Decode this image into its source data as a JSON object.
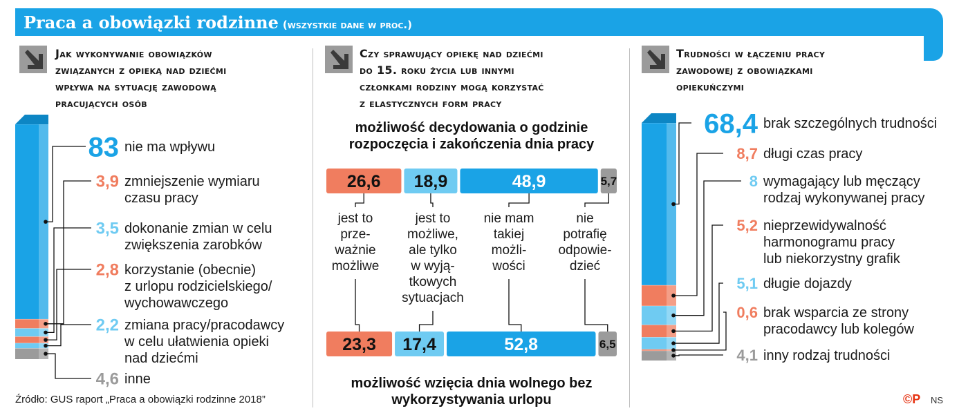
{
  "header": {
    "title": "Praca a obowiązki rodzinne",
    "subtitle": "(wszystkie dane w proc.)"
  },
  "panel1": {
    "question": [
      "Jak wykonywanie obowiązków",
      "związanych z opieką nad dziećmi",
      "wpływa na sytuację zawodową",
      "pracujących osób"
    ]
  },
  "panel2": {
    "question": [
      "Czy sprawujący opiekę nad dziećmi",
      "do 15. roku życia lub innymi",
      "członkami rodziny mogą korzystać",
      "z elastycznych form pracy"
    ],
    "top_title": [
      "możliwość decydowania o godzinie",
      "rozpoczęcia i zakończenia dnia pracy"
    ],
    "bottom_title": [
      "możliwość wzięcia dnia wolnego bez",
      "wykorzystywania urlopu"
    ]
  },
  "panel3": {
    "question": [
      "Trudności w łączeniu pracy",
      "zawodowej z obowiązkami",
      "opiekuńczymi"
    ]
  },
  "colors": {
    "blue": "#1aa3e6",
    "orange": "#f07d5f",
    "light_blue": "#6fcbf2",
    "gray": "#9b9b9b"
  },
  "footer": {
    "source": "Źródło: GUS raport „Praca a obowiązki rodzinne 2018”",
    "logo": "©P",
    "initials": "NS"
  },
  "chart_data": [
    {
      "type": "bar",
      "stacked": true,
      "categories": [
        "nie ma wpływu",
        "zmniejszenie wymiaru czasu pracy",
        "dokonanie zmian w celu zwiększenia zarobków",
        "korzystanie (obecnie) z urlopu rodzicielskiego/ wychowawczego",
        "zmiana pracy/pracodawcy w celu ułatwienia opieki nad dziećmi",
        "inne"
      ],
      "label_lines": [
        [
          "nie ma wpływu"
        ],
        [
          "zmniejszenie wymiaru",
          "czasu pracy"
        ],
        [
          "dokonanie zmian w celu",
          "zwiększenia zarobków"
        ],
        [
          "korzystanie (obecnie)",
          "z urlopu rodzicielskiego/",
          "wychowawczego"
        ],
        [
          "zmiana pracy/pracodawcy",
          "w celu ułatwienia opieki",
          "nad dziećmi"
        ],
        [
          "inne"
        ]
      ],
      "values": [
        83,
        3.9,
        3.5,
        2.8,
        2.2,
        4.6
      ],
      "labels": [
        "83",
        "3,9",
        "3,5",
        "2,8",
        "2,2",
        "4,6"
      ],
      "colors": [
        "blue",
        "orange",
        "light_blue",
        "orange",
        "light_blue",
        "gray"
      ]
    },
    {
      "type": "bar",
      "stacked": true,
      "orientation": "horizontal",
      "categories": [
        "jest to przeważnie możliwe",
        "jest to możliwe, ale tylko w wyjątkowych sytuacjach",
        "nie mam takiej możliwości",
        "nie potrafię odpowiedzieć"
      ],
      "category_lines": [
        [
          "jest to",
          "prze-",
          "ważnie",
          "możliwe"
        ],
        [
          "jest to",
          "możliwe,",
          "ale tylko",
          "w wyją-",
          "tkowych",
          "sytuacjach"
        ],
        [
          "nie mam",
          "takiej",
          "możli-",
          "wości"
        ],
        [
          "nie",
          "potrafię",
          "odpowie-",
          "dzieć"
        ]
      ],
      "series": [
        {
          "name": "możliwość decydowania o godzinie rozpoczęcia i zakończenia dnia pracy",
          "values": [
            26.6,
            18.9,
            48.9,
            5.7
          ],
          "labels": [
            "26,6",
            "18,9",
            "48,9",
            "5,7"
          ]
        },
        {
          "name": "możliwość wzięcia dnia wolnego bez wykorzystywania urlopu",
          "values": [
            23.3,
            17.4,
            52.8,
            6.5
          ],
          "labels": [
            "23,3",
            "17,4",
            "52,8",
            "6,5"
          ]
        }
      ],
      "colors": [
        "orange",
        "light_blue",
        "blue",
        "gray"
      ]
    },
    {
      "type": "bar",
      "stacked": true,
      "categories": [
        "brak szczególnych trudności",
        "długi czas pracy",
        "wymagający lub męczący rodzaj wykonywanej pracy",
        "nieprzewidywalność harmonogramu pracy lub niekorzystny grafik",
        "długie dojazdy",
        "brak wsparcia ze strony pracodawcy lub kolegów",
        "inny rodzaj trudności"
      ],
      "label_lines": [
        [
          "brak szczególnych trudności"
        ],
        [
          "długi czas pracy"
        ],
        [
          "wymagający lub męczący",
          "rodzaj wykonywanej pracy"
        ],
        [
          "nieprzewidywalność",
          "harmonogramu pracy",
          "lub niekorzystny grafik"
        ],
        [
          "długie dojazdy"
        ],
        [
          "brak wsparcia ze strony",
          "pracodawcy lub kolegów"
        ],
        [
          "inny rodzaj trudności"
        ]
      ],
      "values": [
        68.4,
        8.7,
        8,
        5.2,
        5.1,
        0.6,
        4.1
      ],
      "labels": [
        "68,4",
        "8,7",
        "8",
        "5,2",
        "5,1",
        "0,6",
        "4,1"
      ],
      "colors": [
        "blue",
        "orange",
        "light_blue",
        "orange",
        "light_blue",
        "orange",
        "gray"
      ]
    }
  ]
}
